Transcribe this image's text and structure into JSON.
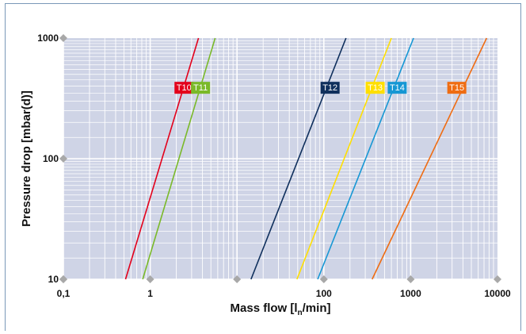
{
  "chart_data": {
    "type": "line",
    "xscale": "log",
    "yscale": "log",
    "xlim": [
      0.1,
      10000
    ],
    "ylim": [
      10,
      1000
    ],
    "xticks": [
      0.1,
      1,
      10,
      100,
      1000,
      10000
    ],
    "xtick_labels": [
      "0,1",
      "1",
      "",
      "100",
      "1000",
      "10000"
    ],
    "yticks": [
      10,
      100,
      1000
    ],
    "ytick_labels": [
      "10",
      "100",
      "1000"
    ],
    "xlabel": "Mass flow [l",
    "xlabel_sub": "n",
    "xlabel_tail": "/min]",
    "ylabel": "Pressure drop [mbar(d)]",
    "grid": true,
    "plot_background": "#cfd4e6",
    "grid_color": "#ffffff",
    "series": [
      {
        "name": "T10",
        "color": "#e3001b",
        "x": [
          0.52,
          3.6
        ],
        "y": [
          10,
          1000
        ],
        "label_at": [
          2.45,
          390
        ]
      },
      {
        "name": "T11",
        "color": "#7ab929",
        "x": [
          0.82,
          5.6
        ],
        "y": [
          10,
          1000
        ],
        "label_at": [
          3.8,
          390
        ]
      },
      {
        "name": "T12",
        "color": "#0f2f5c",
        "x": [
          14.5,
          180
        ],
        "y": [
          10,
          1000
        ],
        "label_at": [
          118,
          390
        ]
      },
      {
        "name": "T13",
        "color": "#ffdf00",
        "x": [
          49,
          600
        ],
        "y": [
          10,
          1000
        ],
        "label_at": [
          390,
          390
        ]
      },
      {
        "name": "T14",
        "color": "#1697d4",
        "x": [
          85,
          1080
        ],
        "y": [
          10,
          1000
        ],
        "label_at": [
          700,
          390
        ]
      },
      {
        "name": "T15",
        "color": "#ef6c12",
        "x": [
          360,
          7500
        ],
        "y": [
          10,
          1000
        ],
        "label_at": [
          3400,
          390
        ]
      }
    ]
  }
}
